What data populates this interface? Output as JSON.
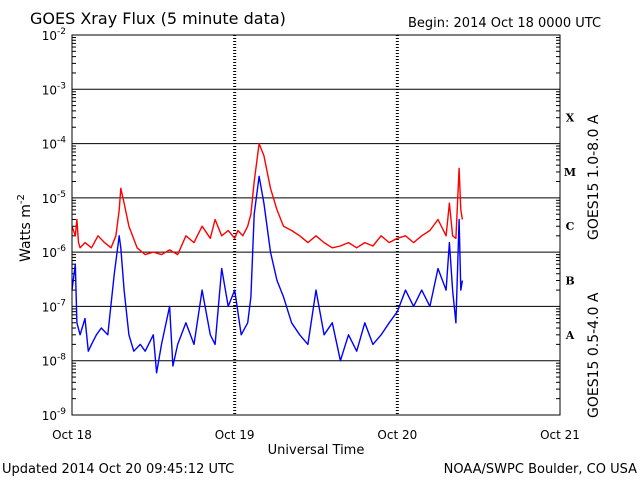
{
  "chart_data": {
    "type": "line",
    "title": "GOES Xray Flux (5 minute data)",
    "begin_label": "Begin:  2014 Oct 18 0000 UTC",
    "xlabel": "Universal Time",
    "ylabel": "Watts m",
    "ylabel_sup": "-2",
    "x_ticks": [
      "Oct 18",
      "Oct 19",
      "Oct 20",
      "Oct 21"
    ],
    "x_range_days": [
      0,
      3
    ],
    "y_scale": "log",
    "ylim": [
      1e-09,
      0.01
    ],
    "y_ticks": [
      {
        "base": "10",
        "exp": "-9",
        "value": 1e-09
      },
      {
        "base": "10",
        "exp": "-8",
        "value": 1e-08
      },
      {
        "base": "10",
        "exp": "-7",
        "value": 1e-07
      },
      {
        "base": "10",
        "exp": "-6",
        "value": 1e-06
      },
      {
        "base": "10",
        "exp": "-5",
        "value": 1e-05
      },
      {
        "base": "10",
        "exp": "-4",
        "value": 0.0001
      },
      {
        "base": "10",
        "exp": "-3",
        "value": 0.001
      },
      {
        "base": "10",
        "exp": "-2",
        "value": 0.01
      }
    ],
    "flare_classes": [
      {
        "label": "A",
        "value": 3e-08
      },
      {
        "label": "B",
        "value": 3e-07
      },
      {
        "label": "C",
        "value": 3e-06
      },
      {
        "label": "M",
        "value": 3e-05
      },
      {
        "label": "X",
        "value": 0.0003
      }
    ],
    "series": [
      {
        "name": "GOES15 1.0-8.0 A",
        "color": "#ff0000",
        "x": [
          0,
          0.02,
          0.03,
          0.04,
          0.05,
          0.08,
          0.12,
          0.16,
          0.2,
          0.24,
          0.27,
          0.29,
          0.3,
          0.32,
          0.35,
          0.4,
          0.45,
          0.5,
          0.55,
          0.6,
          0.65,
          0.7,
          0.75,
          0.8,
          0.85,
          0.88,
          0.92,
          0.96,
          1.0,
          1.02,
          1.05,
          1.08,
          1.1,
          1.12,
          1.15,
          1.18,
          1.22,
          1.26,
          1.3,
          1.35,
          1.4,
          1.45,
          1.5,
          1.55,
          1.6,
          1.65,
          1.7,
          1.75,
          1.8,
          1.85,
          1.9,
          1.95,
          2.0,
          2.05,
          2.1,
          2.15,
          2.2,
          2.25,
          2.3,
          2.32,
          2.34,
          2.36,
          2.38,
          2.39,
          2.4
        ],
        "values": [
          3e-06,
          2e-06,
          4e-06,
          1.5e-06,
          1.2e-06,
          1.5e-06,
          1.2e-06,
          2e-06,
          1.5e-06,
          1.2e-06,
          2e-06,
          6e-06,
          1.5e-05,
          8e-06,
          3e-06,
          1.2e-06,
          9e-07,
          1e-06,
          9e-07,
          1.1e-06,
          9e-07,
          2e-06,
          1.5e-06,
          3e-06,
          1.8e-06,
          4e-06,
          2e-06,
          2.5e-06,
          1.8e-06,
          2.5e-06,
          2e-06,
          3e-06,
          5e-06,
          2e-05,
          0.0001,
          6e-05,
          1.5e-05,
          6e-06,
          3e-06,
          2.5e-06,
          2e-06,
          1.5e-06,
          2e-06,
          1.5e-06,
          1.2e-06,
          1.3e-06,
          1.5e-06,
          1.2e-06,
          1.5e-06,
          1.3e-06,
          2e-06,
          1.5e-06,
          1.8e-06,
          2e-06,
          1.5e-06,
          2e-06,
          2.5e-06,
          4e-06,
          2e-06,
          8e-06,
          2e-06,
          1.8e-06,
          3.5e-05,
          6e-06,
          4e-06
        ]
      },
      {
        "name": "GOES15 0.5-4.0 A",
        "color": "#0000ff",
        "x": [
          0,
          0.02,
          0.03,
          0.05,
          0.08,
          0.1,
          0.12,
          0.15,
          0.18,
          0.22,
          0.26,
          0.29,
          0.3,
          0.32,
          0.35,
          0.38,
          0.42,
          0.45,
          0.5,
          0.52,
          0.55,
          0.6,
          0.62,
          0.65,
          0.7,
          0.75,
          0.8,
          0.85,
          0.88,
          0.92,
          0.96,
          1.0,
          1.04,
          1.08,
          1.1,
          1.12,
          1.15,
          1.18,
          1.22,
          1.26,
          1.3,
          1.35,
          1.4,
          1.45,
          1.5,
          1.55,
          1.6,
          1.65,
          1.7,
          1.75,
          1.8,
          1.85,
          1.9,
          1.95,
          2.0,
          2.05,
          2.1,
          2.15,
          2.2,
          2.25,
          2.3,
          2.32,
          2.34,
          2.36,
          2.38,
          2.39,
          2.4
        ],
        "values": [
          2e-07,
          6e-07,
          5e-08,
          3e-08,
          6e-08,
          1.5e-08,
          2e-08,
          3e-08,
          4e-08,
          3e-08,
          4e-07,
          2e-06,
          1.2e-06,
          2e-07,
          3e-08,
          1.5e-08,
          2e-08,
          1.5e-08,
          3e-08,
          6e-09,
          2e-08,
          1e-07,
          8e-09,
          2e-08,
          5e-08,
          2e-08,
          2e-07,
          3e-08,
          2e-08,
          5e-07,
          1e-07,
          2e-07,
          3e-08,
          5e-08,
          1.5e-07,
          5e-06,
          2.5e-05,
          8e-06,
          1e-06,
          3e-07,
          1.5e-07,
          5e-08,
          3e-08,
          2e-08,
          2e-07,
          3e-08,
          5e-08,
          1e-08,
          3e-08,
          1.5e-08,
          5e-08,
          2e-08,
          3e-08,
          5e-08,
          8e-08,
          2e-07,
          1e-07,
          2e-07,
          1e-07,
          5e-07,
          2e-07,
          1.5e-06,
          2e-07,
          5e-08,
          4e-06,
          2e-07,
          3e-07
        ]
      }
    ],
    "grid": true
  },
  "footer": {
    "updated": "Updated 2014 Oct 20 09:45:12 UTC",
    "source": "NOAA/SWPC Boulder, CO USA"
  }
}
